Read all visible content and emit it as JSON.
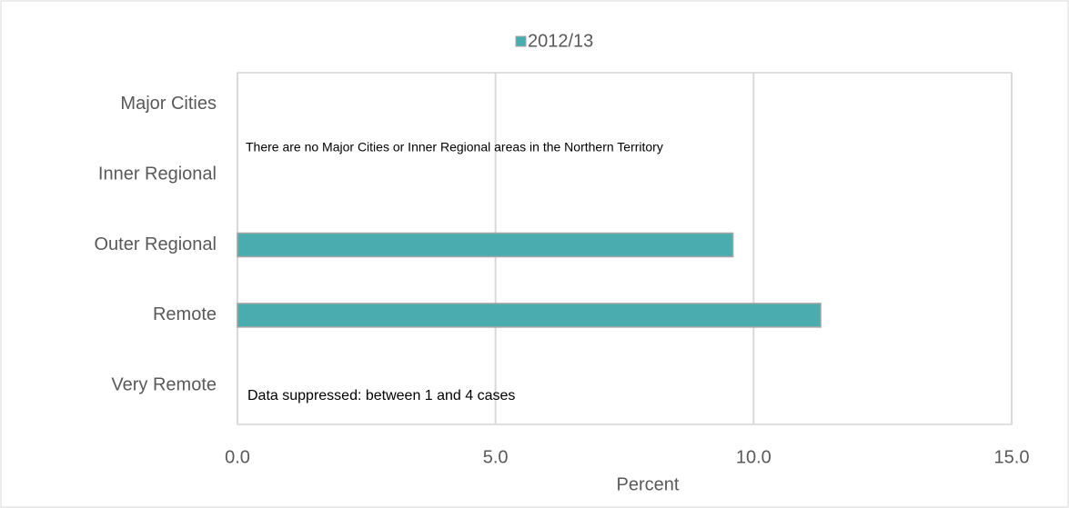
{
  "chart_data": {
    "type": "bar",
    "orientation": "horizontal",
    "categories": [
      "Major Cities",
      "Inner Regional",
      "Outer Regional",
      "Remote",
      "Very Remote"
    ],
    "series": [
      {
        "name": "2012/13",
        "color": "#4bacb0",
        "values": [
          null,
          null,
          9.6,
          11.3,
          null
        ]
      }
    ],
    "xlabel": "Percent",
    "xlim": [
      0,
      15
    ],
    "xticks": [
      {
        "value": 0,
        "label": "0.0"
      },
      {
        "value": 5,
        "label": "5.0"
      },
      {
        "value": 10,
        "label": "10.0"
      },
      {
        "value": 15,
        "label": "15.0"
      }
    ],
    "grid": true,
    "legend": "top",
    "annotations": [
      "There are no Major Cities or Inner Regional areas in the Northern Territory",
      "Data suppressed: between 1 and 4 cases"
    ]
  }
}
